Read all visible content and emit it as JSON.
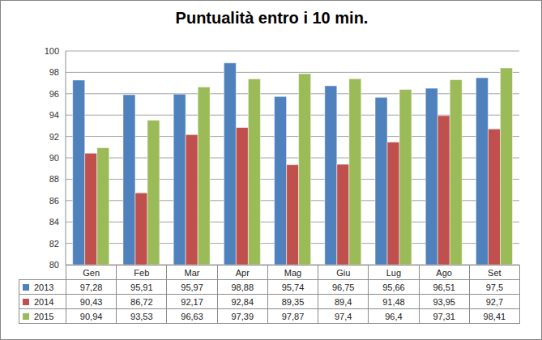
{
  "chart_data": {
    "type": "bar",
    "title": "Puntualità entro i 10 min.",
    "categories": [
      "Gen",
      "Feb",
      "Mar",
      "Apr",
      "Mag",
      "Giu",
      "Lug",
      "Ago",
      "Set"
    ],
    "series": [
      {
        "name": "2013",
        "color": "#4f81bd",
        "values": [
          97.28,
          95.91,
          95.97,
          98.88,
          95.74,
          96.75,
          95.66,
          96.51,
          97.5
        ],
        "value_labels": [
          "97,28",
          "95,91",
          "95,97",
          "98,88",
          "95,74",
          "96,75",
          "95,66",
          "96,51",
          "97,5"
        ]
      },
      {
        "name": "2014",
        "color": "#c0504d",
        "values": [
          90.43,
          86.72,
          92.17,
          92.84,
          89.35,
          89.4,
          91.48,
          93.95,
          92.7
        ],
        "value_labels": [
          "90,43",
          "86,72",
          "92,17",
          "92,84",
          "89,35",
          "89,4",
          "91,48",
          "93,95",
          "92,7"
        ]
      },
      {
        "name": "2015",
        "color": "#9bbb59",
        "values": [
          90.94,
          93.53,
          96.63,
          97.39,
          97.87,
          97.4,
          96.4,
          97.31,
          98.41
        ],
        "value_labels": [
          "90,94",
          "93,53",
          "96,63",
          "97,39",
          "97,87",
          "97,4",
          "96,4",
          "97,31",
          "98,41"
        ]
      }
    ],
    "ylim": [
      80,
      100
    ],
    "yticks": [
      80,
      82,
      84,
      86,
      88,
      90,
      92,
      94,
      96,
      98,
      100
    ],
    "grid": true
  }
}
